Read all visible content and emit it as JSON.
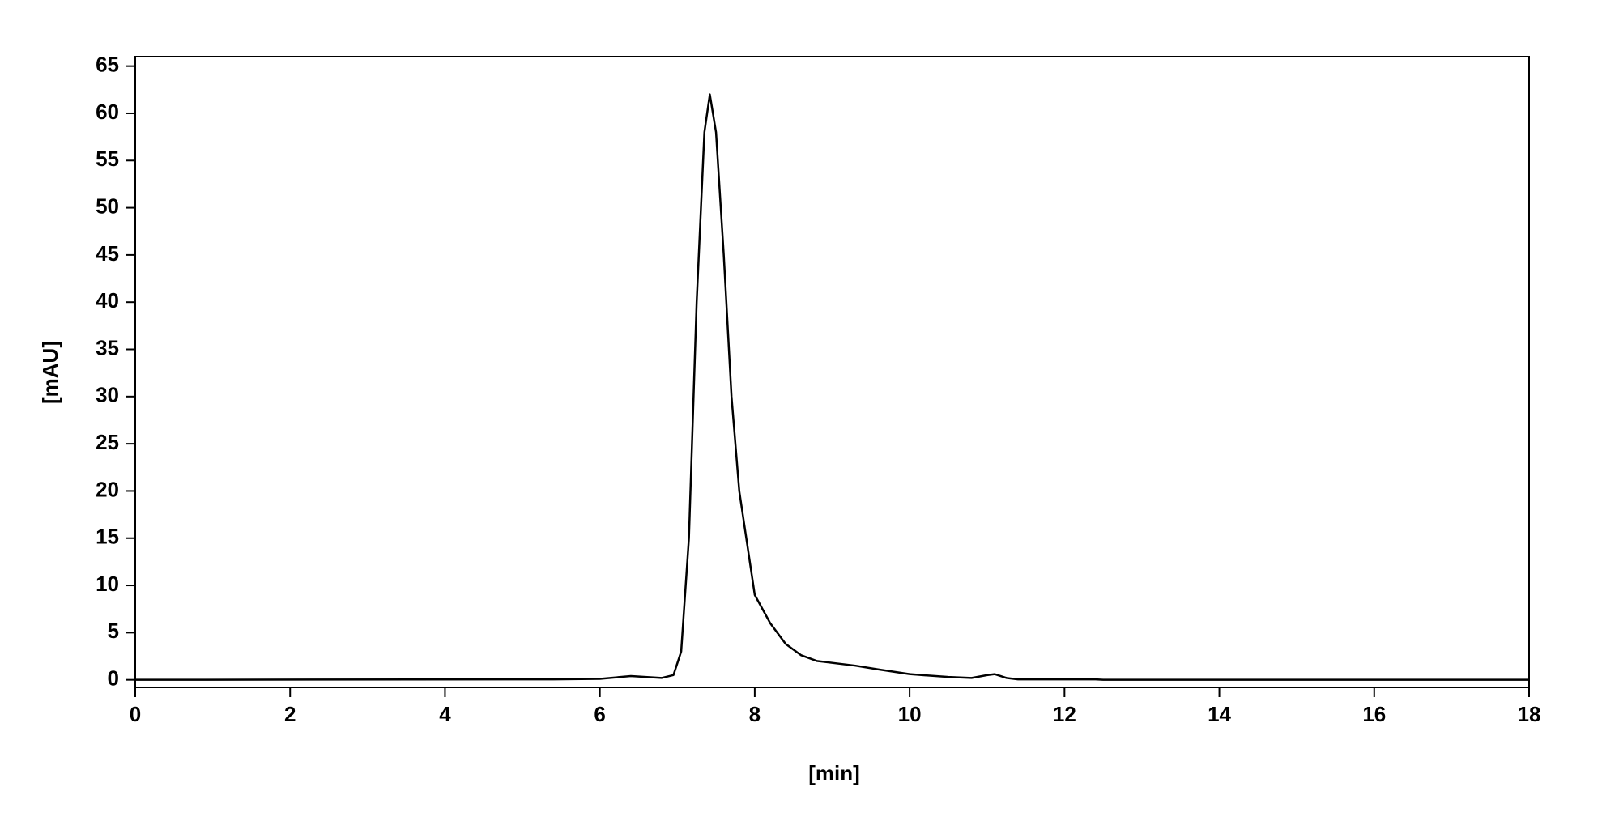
{
  "chart_data": {
    "type": "line",
    "x_label": "[min]",
    "y_label": "[mAU]",
    "x": [
      0,
      5.4,
      6.0,
      6.4,
      6.8,
      6.95,
      7.05,
      7.15,
      7.25,
      7.35,
      7.42,
      7.5,
      7.6,
      7.7,
      7.8,
      8.0,
      8.2,
      8.4,
      8.6,
      8.8,
      9.0,
      9.3,
      9.6,
      10.0,
      10.5,
      10.8,
      11.0,
      11.1,
      11.25,
      11.4,
      12.4,
      12.5,
      18
    ],
    "values": [
      0,
      0.05,
      0.1,
      0.4,
      0.2,
      0.5,
      3,
      15,
      40,
      58,
      62,
      58,
      45,
      30,
      20,
      9,
      6,
      3.8,
      2.6,
      2.0,
      1.8,
      1.5,
      1.1,
      0.6,
      0.3,
      0.2,
      0.5,
      0.6,
      0.2,
      0.05,
      0.05,
      0,
      0
    ],
    "color": "#000000",
    "xlim": [
      0,
      18
    ],
    "xticks": [
      0,
      2,
      4,
      6,
      8,
      10,
      12,
      14,
      16,
      18
    ],
    "ylim": [
      -0.8,
      66
    ],
    "yticks": [
      0,
      5,
      10,
      15,
      20,
      25,
      30,
      35,
      40,
      45,
      50,
      55,
      60,
      65
    ],
    "grid": false
  }
}
